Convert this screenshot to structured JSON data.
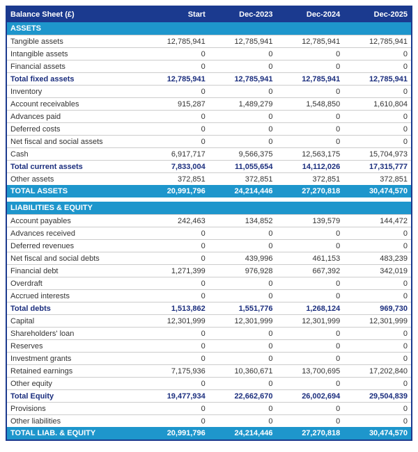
{
  "table": {
    "title": "Balance Sheet (£)",
    "columns": [
      "Start",
      "Dec-2023",
      "Dec-2024",
      "Dec-2025"
    ],
    "colors": {
      "header_bg": "#1b3a8f",
      "band_bg": "#1e96cc",
      "total_text": "#1b2e7e",
      "body_text": "#333333",
      "row_border": "#cccccc",
      "outer_border": "#1b3a8f"
    },
    "rows": [
      {
        "type": "section",
        "label": "ASSETS"
      },
      {
        "type": "item",
        "label": "Tangible assets",
        "values": [
          "12,785,941",
          "12,785,941",
          "12,785,941",
          "12,785,941"
        ]
      },
      {
        "type": "item",
        "label": "Intangible assets",
        "values": [
          "0",
          "0",
          "0",
          "0"
        ]
      },
      {
        "type": "item",
        "label": "Financial assets",
        "values": [
          "0",
          "0",
          "0",
          "0"
        ]
      },
      {
        "type": "subtotal",
        "label": "Total fixed assets",
        "values": [
          "12,785,941",
          "12,785,941",
          "12,785,941",
          "12,785,941"
        ]
      },
      {
        "type": "item",
        "label": "Inventory",
        "values": [
          "0",
          "0",
          "0",
          "0"
        ]
      },
      {
        "type": "item",
        "label": "Account receivables",
        "values": [
          "915,287",
          "1,489,279",
          "1,548,850",
          "1,610,804"
        ]
      },
      {
        "type": "item",
        "label": "Advances paid",
        "values": [
          "0",
          "0",
          "0",
          "0"
        ]
      },
      {
        "type": "item",
        "label": "Deferred costs",
        "values": [
          "0",
          "0",
          "0",
          "0"
        ]
      },
      {
        "type": "item",
        "label": "Net fiscal and social assets",
        "values": [
          "0",
          "0",
          "0",
          "0"
        ]
      },
      {
        "type": "item",
        "label": "Cash",
        "values": [
          "6,917,717",
          "9,566,375",
          "12,563,175",
          "15,704,973"
        ]
      },
      {
        "type": "subtotal",
        "label": "Total current assets",
        "values": [
          "7,833,004",
          "11,055,654",
          "14,112,026",
          "17,315,777"
        ]
      },
      {
        "type": "item",
        "label": "Other assets",
        "values": [
          "372,851",
          "372,851",
          "372,851",
          "372,851"
        ]
      },
      {
        "type": "grand",
        "label": "TOTAL ASSETS",
        "values": [
          "20,991,796",
          "24,214,446",
          "27,270,818",
          "30,474,570"
        ]
      },
      {
        "type": "spacer"
      },
      {
        "type": "section",
        "label": "LIABILITIES & EQUITY"
      },
      {
        "type": "item",
        "label": "Account payables",
        "values": [
          "242,463",
          "134,852",
          "139,579",
          "144,472"
        ]
      },
      {
        "type": "item",
        "label": "Advances received",
        "values": [
          "0",
          "0",
          "0",
          "0"
        ]
      },
      {
        "type": "item",
        "label": "Deferred revenues",
        "values": [
          "0",
          "0",
          "0",
          "0"
        ]
      },
      {
        "type": "item",
        "label": "Net fiscal and social debts",
        "values": [
          "0",
          "439,996",
          "461,153",
          "483,239"
        ]
      },
      {
        "type": "item",
        "label": "Financial debt",
        "values": [
          "1,271,399",
          "976,928",
          "667,392",
          "342,019"
        ]
      },
      {
        "type": "item",
        "label": "Overdraft",
        "values": [
          "0",
          "0",
          "0",
          "0"
        ]
      },
      {
        "type": "item",
        "label": "Accrued interests",
        "values": [
          "0",
          "0",
          "0",
          "0"
        ]
      },
      {
        "type": "subtotal",
        "label": "Total debts",
        "values": [
          "1,513,862",
          "1,551,776",
          "1,268,124",
          "969,730"
        ]
      },
      {
        "type": "item",
        "label": "Capital",
        "values": [
          "12,301,999",
          "12,301,999",
          "12,301,999",
          "12,301,999"
        ]
      },
      {
        "type": "item",
        "label": "Shareholders' loan",
        "values": [
          "0",
          "0",
          "0",
          "0"
        ]
      },
      {
        "type": "item",
        "label": "Reserves",
        "values": [
          "0",
          "0",
          "0",
          "0"
        ]
      },
      {
        "type": "item",
        "label": "Investment grants",
        "values": [
          "0",
          "0",
          "0",
          "0"
        ]
      },
      {
        "type": "item",
        "label": "Retained earnings",
        "values": [
          "7,175,936",
          "10,360,671",
          "13,700,695",
          "17,202,840"
        ]
      },
      {
        "type": "item",
        "label": "Other equity",
        "values": [
          "0",
          "0",
          "0",
          "0"
        ]
      },
      {
        "type": "subtotal",
        "label": "Total Equity",
        "values": [
          "19,477,934",
          "22,662,670",
          "26,002,694",
          "29,504,839"
        ]
      },
      {
        "type": "item",
        "label": "Provisions",
        "values": [
          "0",
          "0",
          "0",
          "0"
        ]
      },
      {
        "type": "item",
        "label": "Other liabilities",
        "values": [
          "0",
          "0",
          "0",
          "0"
        ]
      },
      {
        "type": "grand",
        "label": "TOTAL LIAB. & EQUITY",
        "values": [
          "20,991,796",
          "24,214,446",
          "27,270,818",
          "30,474,570"
        ]
      }
    ]
  }
}
